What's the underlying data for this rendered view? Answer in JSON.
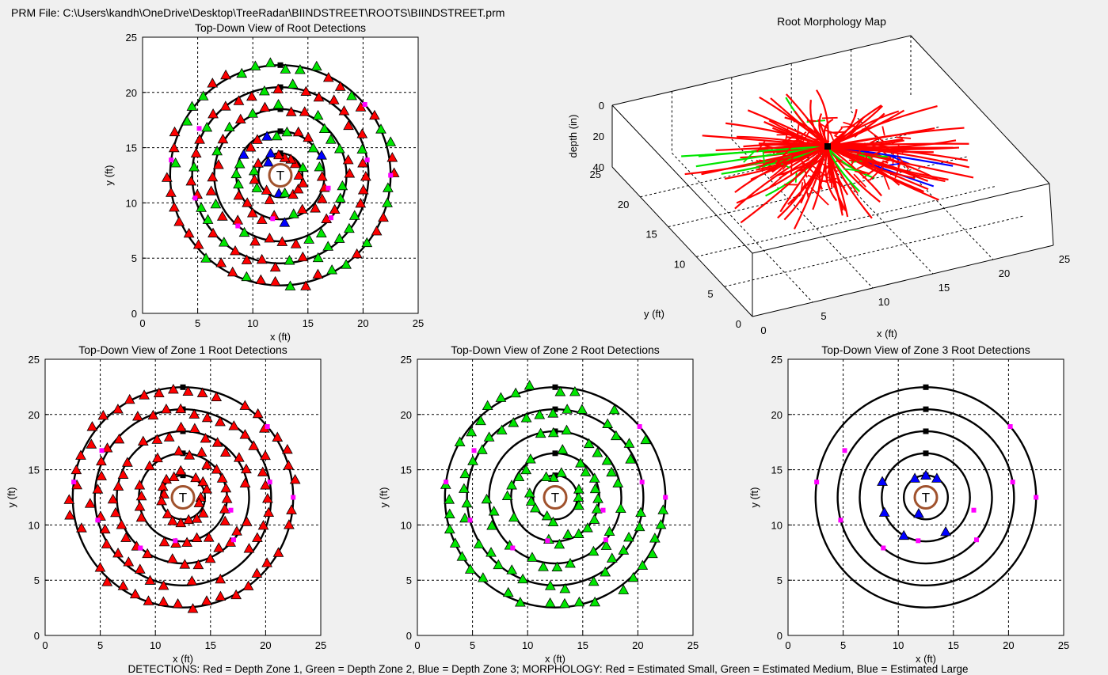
{
  "header": {
    "prm_file_text": "PRM File: C:\\Users\\kandh\\OneDrive\\Desktop\\TreeRadar\\BIINDSTREET\\ROOTS\\BIINDSTREET.prm"
  },
  "footer": {
    "legend_text": "DETECTIONS: Red = Depth Zone 1, Green = Depth Zone 2, Blue = Depth Zone 3; MORPHOLOGY: Red = Estimated Small, Green = Estimated Medium, Blue = Estimated Large"
  },
  "colors": {
    "zone1": "#ff0000",
    "zone2": "#00e600",
    "zone3": "#0000ff",
    "tree": "#a0522d",
    "marker": "#ff00ff",
    "bg": "#f0f0f0"
  },
  "tree_marker_label": "T",
  "chart_data": [
    {
      "id": "all",
      "type": "scatter",
      "title": "Top-Down View of Root Detections",
      "xlabel": "x (ft)",
      "ylabel": "y (ft)",
      "xlim": [
        0,
        25
      ],
      "ylim": [
        0,
        25
      ],
      "xticks": [
        "0",
        "5",
        "10",
        "15",
        "20",
        "25"
      ],
      "yticks": [
        "0",
        "5",
        "10",
        "15",
        "20",
        "25"
      ],
      "center": [
        12.5,
        12.5
      ],
      "rings_radius_ft": [
        2,
        4,
        6,
        8,
        10
      ],
      "zones_shown": [
        1,
        2,
        3
      ]
    },
    {
      "id": "morph",
      "type": "3d-line",
      "title": "Root Morphology Map",
      "xlabel": "x (ft)",
      "ylabel": "y (ft)",
      "zlabel": "depth (in)",
      "xticks": [
        "0",
        "5",
        "10",
        "15",
        "20",
        "25"
      ],
      "yticks": [
        "0",
        "5",
        "10",
        "15",
        "20",
        "25"
      ],
      "zticks": [
        "0",
        "20",
        "40"
      ],
      "series": [
        {
          "name": "Estimated Small",
          "color": "#ff0000"
        },
        {
          "name": "Estimated Medium",
          "color": "#00e600"
        },
        {
          "name": "Estimated Large",
          "color": "#0000ff"
        }
      ]
    },
    {
      "id": "z1",
      "type": "scatter",
      "title": "Top-Down View of Zone 1 Root Detections",
      "xlabel": "x (ft)",
      "ylabel": "y (ft)",
      "xlim": [
        0,
        25
      ],
      "ylim": [
        0,
        25
      ],
      "xticks": [
        "0",
        "5",
        "10",
        "15",
        "20",
        "25"
      ],
      "yticks": [
        "0",
        "5",
        "10",
        "15",
        "20",
        "25"
      ],
      "center": [
        12.5,
        12.5
      ],
      "rings_radius_ft": [
        2,
        4,
        6,
        8,
        10
      ],
      "zones_shown": [
        1
      ]
    },
    {
      "id": "z2",
      "type": "scatter",
      "title": "Top-Down View of Zone 2 Root Detections",
      "xlabel": "x (ft)",
      "ylabel": "y (ft)",
      "xlim": [
        0,
        25
      ],
      "ylim": [
        0,
        25
      ],
      "xticks": [
        "0",
        "5",
        "10",
        "15",
        "20",
        "25"
      ],
      "yticks": [
        "0",
        "5",
        "10",
        "15",
        "20",
        "25"
      ],
      "center": [
        12.5,
        12.5
      ],
      "rings_radius_ft": [
        2,
        4,
        6,
        8,
        10
      ],
      "zones_shown": [
        2
      ]
    },
    {
      "id": "z3",
      "type": "scatter",
      "title": "Top-Down View of Zone 3 Root Detections",
      "xlabel": "x (ft)",
      "ylabel": "y (ft)",
      "xlim": [
        0,
        25
      ],
      "ylim": [
        0,
        25
      ],
      "xticks": [
        "0",
        "5",
        "10",
        "15",
        "20",
        "25"
      ],
      "yticks": [
        "0",
        "5",
        "10",
        "15",
        "20",
        "25"
      ],
      "center": [
        12.5,
        12.5
      ],
      "rings_radius_ft": [
        2,
        4,
        6,
        8,
        10
      ],
      "zones_shown": [
        3
      ]
    }
  ]
}
